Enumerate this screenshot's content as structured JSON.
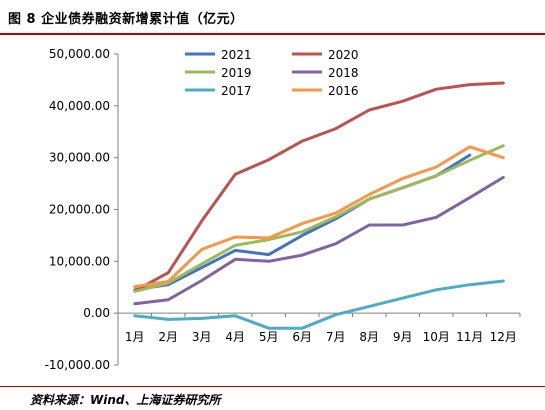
{
  "figure": {
    "title": "图 8 企业债券融资新增累计值（亿元）",
    "source": "资料来源：Wind、上海证券研究所"
  },
  "chart_data": {
    "type": "line",
    "categories": [
      "1月",
      "2月",
      "3月",
      "4月",
      "5月",
      "6月",
      "7月",
      "8月",
      "9月",
      "10月",
      "11月",
      "12月"
    ],
    "yticks": [
      "50,000.00",
      "40,000.00",
      "30,000.00",
      "20,000.00",
      "10,000.00",
      "0.00",
      "-10,000.00"
    ],
    "ylim": [
      -10000,
      50000
    ],
    "grid": false,
    "legend_position": "top-center",
    "series": [
      {
        "name": "2021",
        "color": "#4472c4",
        "values": [
          4500,
          5500,
          8800,
          12100,
          11300,
          15000,
          18200,
          22000,
          24200,
          26500,
          30500,
          null
        ]
      },
      {
        "name": "2020",
        "color": "#c0504d",
        "values": [
          4300,
          7800,
          17800,
          26800,
          29600,
          33200,
          35600,
          39200,
          40900,
          43200,
          44100,
          44400
        ]
      },
      {
        "name": "2019",
        "color": "#9bbb59",
        "values": [
          4200,
          5800,
          9500,
          13100,
          14200,
          15700,
          18600,
          22000,
          24200,
          26500,
          29500,
          32300
        ]
      },
      {
        "name": "2018",
        "color": "#8064a2",
        "values": [
          1800,
          2600,
          6300,
          10400,
          10000,
          11200,
          13400,
          17000,
          17000,
          18500,
          22300,
          26200
        ]
      },
      {
        "name": "2017",
        "color": "#4bacc6",
        "values": [
          -500,
          -1200,
          -1000,
          -500,
          -2900,
          -2900,
          -300,
          1300,
          2900,
          4500,
          5500,
          6200
        ]
      },
      {
        "name": "2016",
        "color": "#f79646",
        "values": [
          5100,
          6100,
          12300,
          14700,
          14500,
          17300,
          19300,
          22900,
          26000,
          28200,
          32100,
          30000
        ]
      }
    ]
  }
}
